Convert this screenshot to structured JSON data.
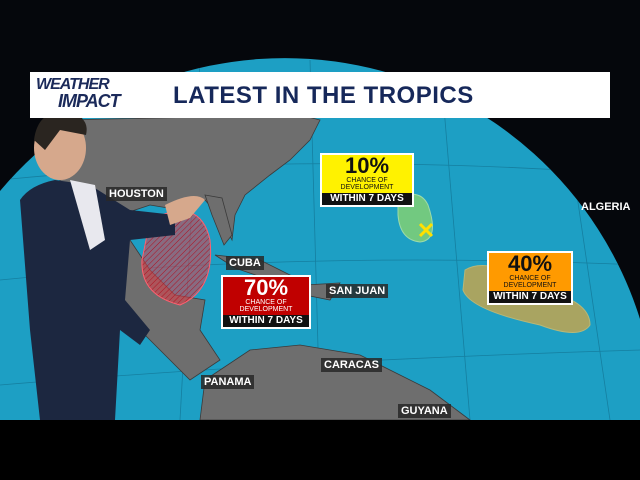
{
  "header": {
    "logo_line1": "WEATHER",
    "logo_line2": "IMPACT",
    "title": "LATEST IN THE TROPICS"
  },
  "cities": {
    "houston": "HOUSTON",
    "cuba": "CUBA",
    "san_juan": "SAN JUAN",
    "caracas": "CARACAS",
    "panama": "PANAMA",
    "guyana": "GUYANA",
    "algeria": "ALGERIA"
  },
  "outlooks": [
    {
      "percent": "10%",
      "line1": "CHANCE OF",
      "line2": "DEVELOPMENT",
      "window": "WITHIN 7 DAYS",
      "color": "#fff200",
      "area_color": "#8fd86a"
    },
    {
      "percent": "70%",
      "line1": "CHANCE OF",
      "line2": "DEVELOPMENT",
      "window": "WITHIN 7 DAYS",
      "color": "#c00000",
      "area_color": "#e0404a"
    },
    {
      "percent": "40%",
      "line1": "CHANCE OF",
      "line2": "DEVELOPMENT",
      "window": "WITHIN 7 DAYS",
      "color": "#ff9a00",
      "area_color": "#d8a640"
    }
  ],
  "colors": {
    "ocean": "#1d9fc4",
    "land": "#6e6e6e",
    "banner_text": "#16285a"
  }
}
